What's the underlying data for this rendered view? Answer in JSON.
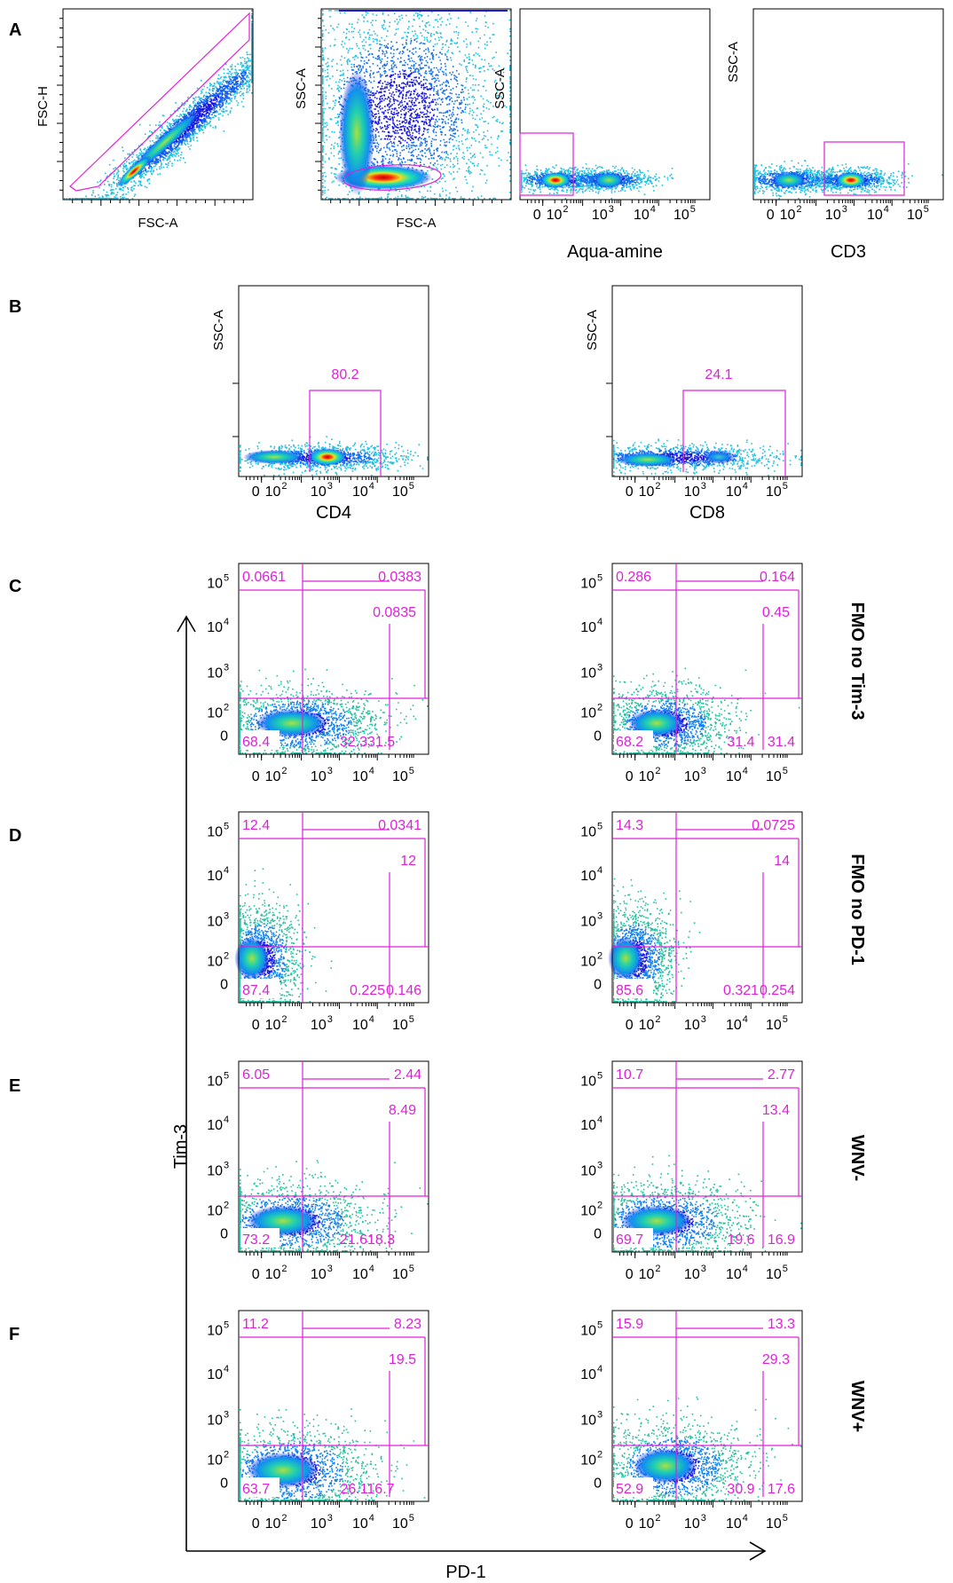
{
  "colors": {
    "gate": "#e020d8",
    "frame": "#000000",
    "density": [
      "#1818e0",
      "#10a0f0",
      "#20e0b0",
      "#e8e020",
      "#ff3010",
      "#c00000"
    ]
  },
  "panel_letters": [
    "A",
    "B",
    "C",
    "D",
    "E",
    "F"
  ],
  "row_labels": {
    "C": "FMO no Tim-3",
    "D": "FMO no PD-1",
    "E": "WNV-",
    "F": "WNV+"
  },
  "shared_axes": {
    "x": "PD-1",
    "y": "Tim-3"
  },
  "chart_data": [
    {
      "id": "A1",
      "type": "scatter",
      "xlabel": "FSC-A",
      "ylabel": "FSC-H",
      "gate": "polygon"
    },
    {
      "id": "A2",
      "type": "scatter",
      "xlabel": "FSC-A",
      "ylabel": "SSC-A",
      "gate": "ellipse"
    },
    {
      "id": "A3",
      "type": "scatter",
      "xlabel": "Aqua-amine",
      "ylabel": "SSC-A",
      "x_ticks": [
        "0",
        "10 2",
        "10 3",
        "10 4",
        "10 5"
      ],
      "gate": "rectangle"
    },
    {
      "id": "A4",
      "type": "scatter",
      "xlabel": "CD3",
      "ylabel": "SSC-A",
      "x_ticks": [
        "0",
        "10 2",
        "10 3",
        "10 4",
        "10 5"
      ],
      "gate": "rectangle"
    },
    {
      "id": "B1",
      "type": "scatter",
      "xlabel": "CD4",
      "ylabel": "SSC-A",
      "x_ticks": [
        "0",
        "10 2",
        "10 3",
        "10 4",
        "10 5"
      ],
      "gate_value": "80.2"
    },
    {
      "id": "B2",
      "type": "scatter",
      "xlabel": "CD8",
      "ylabel": "SSC-A",
      "x_ticks": [
        "0",
        "10 2",
        "10 3",
        "10 4",
        "10 5"
      ],
      "gate_value": "24.1"
    },
    {
      "id": "C1",
      "type": "scatter",
      "row": "FMO no Tim-3",
      "population": "CD4",
      "quadrants": {
        "top_left": "0.0661",
        "top_right": "0.0383",
        "mid_right": "0.0835",
        "bottom_left": "68.4",
        "bottom_mid": "32.331.5",
        "bottom_right": ""
      }
    },
    {
      "id": "C2",
      "type": "scatter",
      "row": "FMO no Tim-3",
      "population": "CD8",
      "quadrants": {
        "top_left": "0.286",
        "top_right": "0.164",
        "mid_right": "0.45",
        "bottom_left": "68.2",
        "bottom_mid": "31.4",
        "bottom_right": "31.4"
      }
    },
    {
      "id": "D1",
      "type": "scatter",
      "row": "FMO no PD-1",
      "population": "CD4",
      "quadrants": {
        "top_left": "12.4",
        "top_right": "0.0341",
        "mid_right": "12",
        "bottom_left": "87.4",
        "bottom_mid": "0.225",
        "bottom_right": "0.146"
      }
    },
    {
      "id": "D2",
      "type": "scatter",
      "row": "FMO no PD-1",
      "population": "CD8",
      "quadrants": {
        "top_left": "14.3",
        "top_right": "0.0725",
        "mid_right": "14",
        "bottom_left": "85.6",
        "bottom_mid": "0.321",
        "bottom_right": "0.254"
      }
    },
    {
      "id": "E1",
      "type": "scatter",
      "row": "WNV-",
      "population": "CD4",
      "quadrants": {
        "top_left": "6.05",
        "top_right": "2.44",
        "mid_right": "8.49",
        "bottom_left": "73.2",
        "bottom_mid": "21.618.3",
        "bottom_right": ""
      }
    },
    {
      "id": "E2",
      "type": "scatter",
      "row": "WNV-",
      "population": "CD8",
      "quadrants": {
        "top_left": "10.7",
        "top_right": "2.77",
        "mid_right": "13.4",
        "bottom_left": "69.7",
        "bottom_mid": "19.6",
        "bottom_right": "16.9"
      }
    },
    {
      "id": "F1",
      "type": "scatter",
      "row": "WNV+",
      "population": "CD4",
      "quadrants": {
        "top_left": "11.2",
        "top_right": "8.23",
        "mid_right": "19.5",
        "bottom_left": "63.7",
        "bottom_mid": "26.116.7",
        "bottom_right": ""
      }
    },
    {
      "id": "F2",
      "type": "scatter",
      "row": "WNV+",
      "population": "CD8",
      "quadrants": {
        "top_left": "15.9",
        "top_right": "13.3",
        "mid_right": "29.3",
        "bottom_left": "52.9",
        "bottom_mid": "30.9",
        "bottom_right": "17.6"
      }
    }
  ],
  "grid_tick_labels": {
    "x": [
      "0",
      "10 2",
      "10 3",
      "10 4",
      "10 5"
    ],
    "y": [
      "10 5",
      "10 4",
      "10 3",
      "10 2",
      "0"
    ]
  }
}
